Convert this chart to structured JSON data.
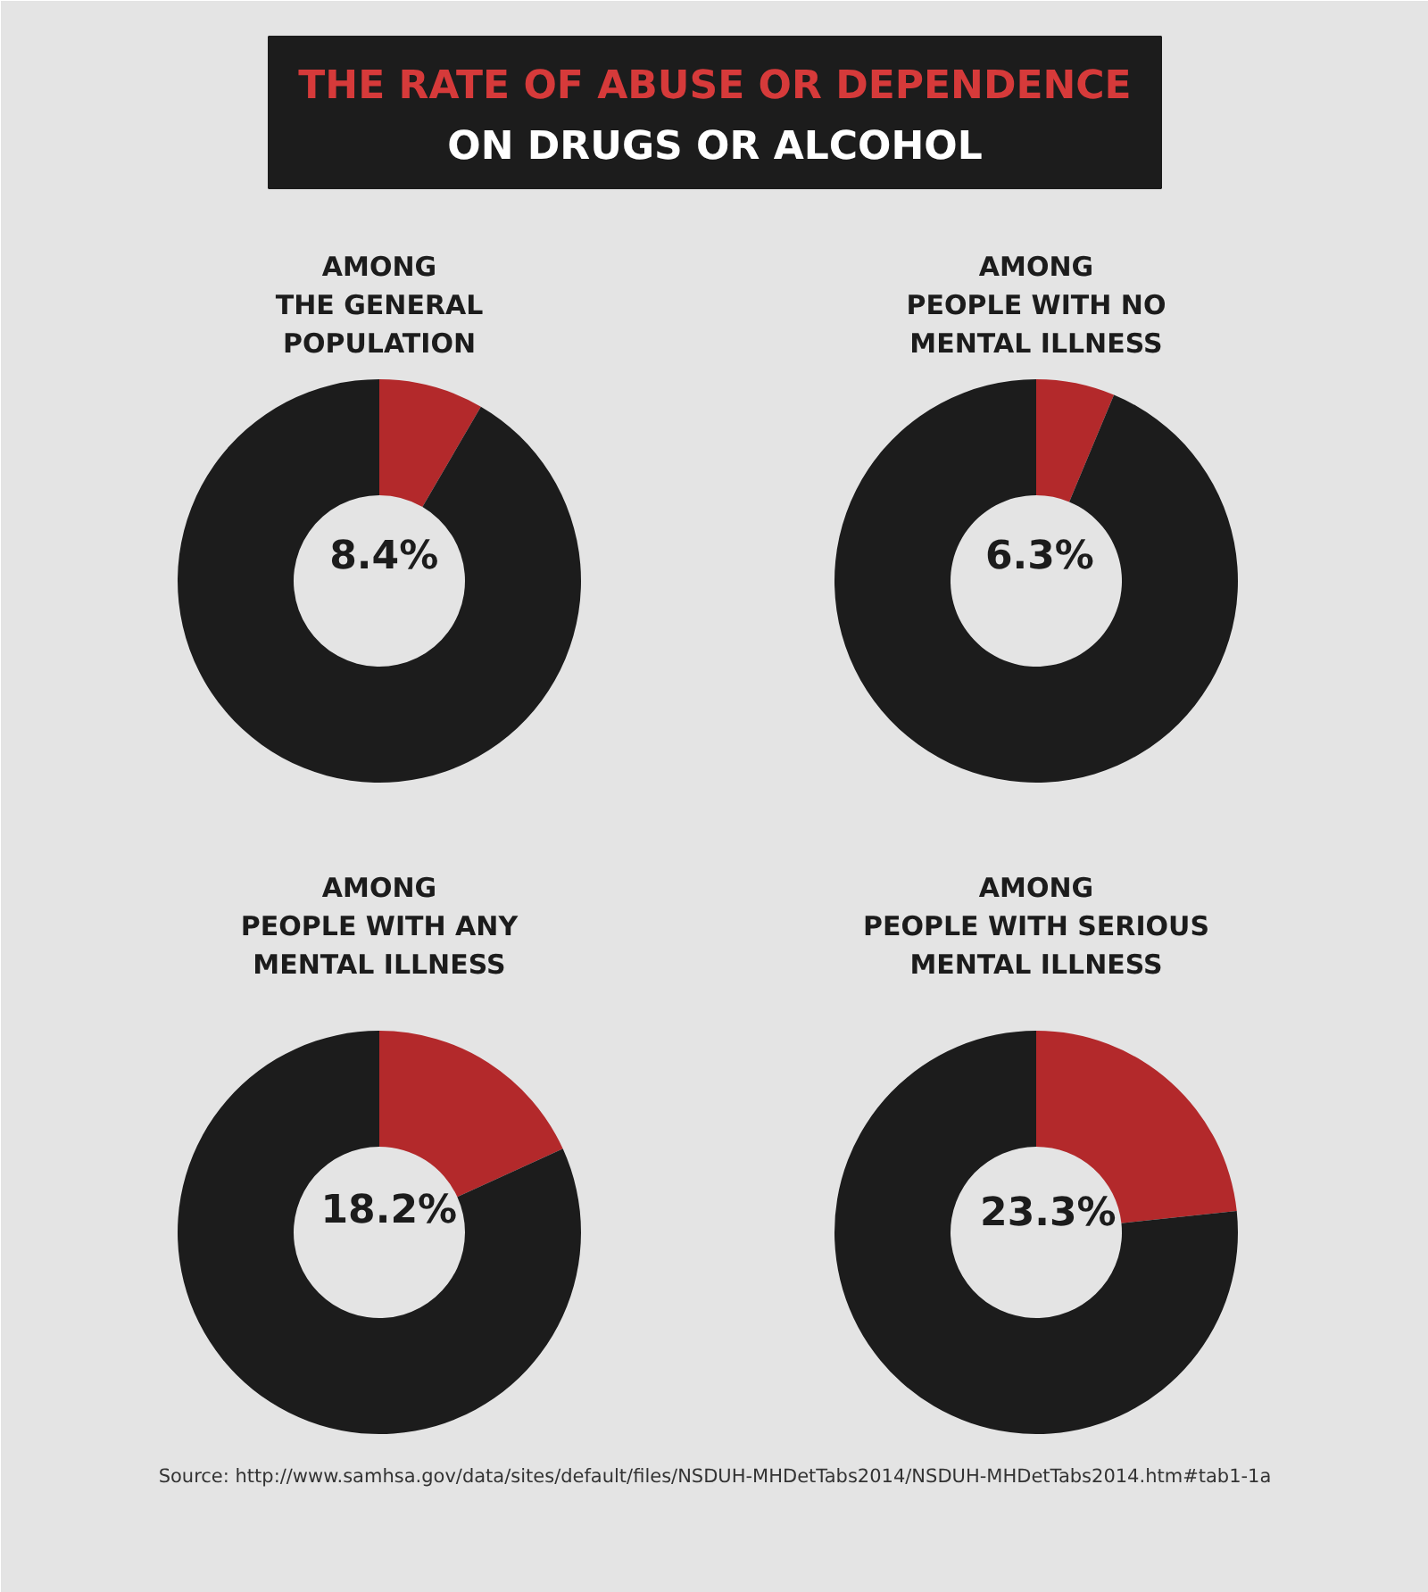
{
  "chart_data": [
    {
      "type": "other",
      "title": "THE RATE OF ABUSE OR DEPENDENCE",
      "subtitle": "ON DRUGS OR ALCOHOL",
      "annotations": [
        "Source: http://www.samhsa.gov/data/sites/default/files/NSDUH-MHDetTabs2014/NSDUH-MHDetTabs2014.htm#tab1-1a"
      ]
    },
    {
      "type": "donut",
      "title": "AMONG\nTHE GENERAL\nPOPULATION",
      "categories": [
        null,
        null
      ],
      "values": [
        8.4,
        91.6
      ],
      "colors": [
        "#b3292b",
        "#1c1c1c"
      ],
      "value_labels": [
        "8.4%",
        null
      ]
    },
    {
      "type": "donut",
      "title": "AMONG\nPEOPLE WITH NO\nMENTAL ILLNESS",
      "categories": [
        null,
        null
      ],
      "values": [
        6.3,
        93.7
      ],
      "colors": [
        "#b3292b",
        "#1c1c1c"
      ],
      "value_labels": [
        "6.3%",
        null
      ]
    },
    {
      "type": "donut",
      "title": "AMONG\nPEOPLE WITH ANY\nMENTAL ILLNESS",
      "categories": [
        null,
        null
      ],
      "values": [
        18.2,
        81.8
      ],
      "colors": [
        "#b3292b",
        "#1c1c1c"
      ],
      "value_labels": [
        "18.2%",
        null
      ]
    },
    {
      "type": "donut",
      "title": "AMONG\nPEOPLE WITH SERIOUS\nMENTAL ILLNESS",
      "categories": [
        null,
        null
      ],
      "values": [
        23.3,
        76.7
      ],
      "colors": [
        "#b3292b",
        "#1c1c1c"
      ],
      "value_labels": [
        "23.3%",
        null
      ]
    }
  ]
}
